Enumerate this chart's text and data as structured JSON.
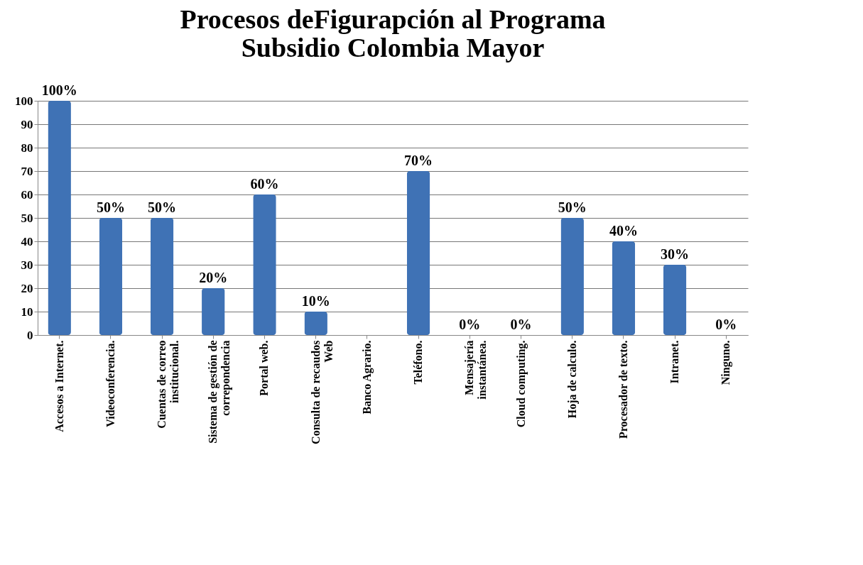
{
  "chart_data": {
    "type": "bar",
    "title": "Procesos deFigurapción al Programa\nSubsidio Colombia Mayor",
    "categories": [
      "Accesos a Internet.",
      "Videoconferencia.",
      "Cuentas de correo institucional.",
      "Sistema de gestión de correpondencia",
      "Portal web.",
      "Consulta de recaudos Web",
      "Banco Agrario.",
      "Teléfono.",
      "Mensajería instantánea.",
      "Cloud computing.",
      "Hoja de calculo.",
      "Procesador de texto.",
      "Intranet.",
      "Ninguno."
    ],
    "values": [
      100,
      50,
      50,
      20,
      60,
      10,
      null,
      70,
      0,
      0,
      50,
      40,
      30,
      0
    ],
    "value_labels": [
      "100%",
      "50%",
      "50%",
      "20%",
      "60%",
      "10%",
      null,
      "70%",
      "0%",
      "0%",
      "50%",
      "40%",
      "30%",
      "0%"
    ],
    "color": "#3f72b5",
    "ylim": [
      0,
      100
    ],
    "yticks": [
      0,
      10,
      20,
      30,
      40,
      50,
      60,
      70,
      80,
      90,
      100
    ],
    "grid": "y"
  }
}
